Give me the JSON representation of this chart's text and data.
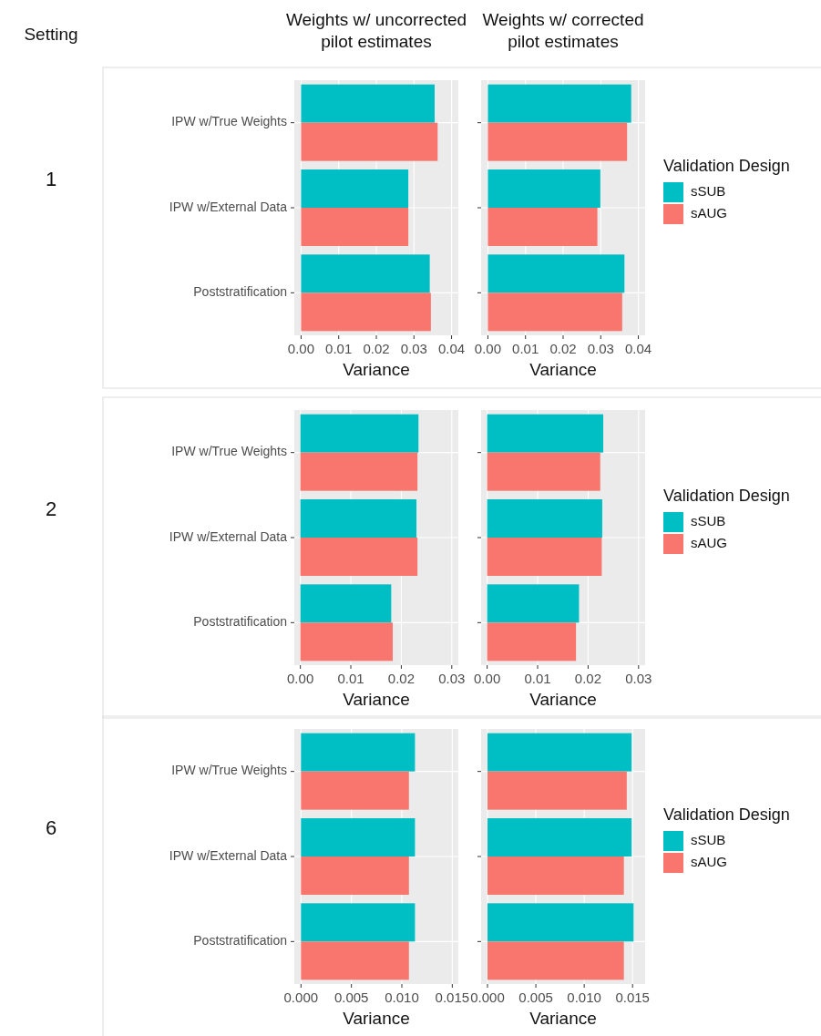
{
  "chart_data": [
    {
      "type": "bar",
      "orientation": "horizontal",
      "title": "Weights w/ uncorrected pilot estimates",
      "annotations": [
        "Setting",
        "1"
      ],
      "categories": [
        "IPW w/True Weights",
        "IPW w/External Data",
        "Poststratification"
      ],
      "series": [
        {
          "color": "#00bfc4",
          "values": [
            0.0355,
            0.0285,
            0.0342
          ]
        },
        {
          "color": "#f8766d",
          "values": [
            0.0363,
            0.0285,
            0.0345
          ]
        }
      ],
      "xlim": [
        -0.0018,
        0.0418
      ],
      "xticks": [
        {
          "value": 0,
          "label": "0.00"
        },
        {
          "value": 0.01,
          "label": "0.01"
        },
        {
          "value": 0.02,
          "label": "0.02"
        },
        {
          "value": 0.03,
          "label": "0.03"
        },
        {
          "value": 0.04,
          "label": "0.04"
        }
      ],
      "xlabel": "Variance",
      "grid": true,
      "legend": false
    },
    {
      "type": "bar",
      "orientation": "horizontal",
      "title": "Weights w/ corrected pilot estimates",
      "categories": [
        null,
        null,
        null
      ],
      "series": [
        {
          "name": "sSUB",
          "color": "#00bfc4",
          "values": [
            0.0381,
            0.0299,
            0.0363
          ]
        },
        {
          "name": "sAUG",
          "color": "#f8766d",
          "values": [
            0.037,
            0.0291,
            0.0357
          ]
        }
      ],
      "xlim": [
        -0.0018,
        0.0418
      ],
      "xticks": [
        {
          "value": 0,
          "label": "0.00"
        },
        {
          "value": 0.01,
          "label": "0.01"
        },
        {
          "value": 0.02,
          "label": "0.02"
        },
        {
          "value": 0.03,
          "label": "0.03"
        },
        {
          "value": 0.04,
          "label": "0.04"
        }
      ],
      "xlabel": "Variance",
      "grid": true,
      "legend": "right",
      "legend_title": "Validation Design",
      "tick_labels": "x"
    },
    {
      "type": "bar",
      "orientation": "horizontal",
      "annotations": [
        "2"
      ],
      "categories": [
        "IPW w/True Weights",
        "IPW w/External Data",
        "Poststratification"
      ],
      "series": [
        {
          "color": "#00bfc4",
          "values": [
            0.0234,
            0.023,
            0.018
          ]
        },
        {
          "color": "#f8766d",
          "values": [
            0.0232,
            0.0232,
            0.0183
          ]
        }
      ],
      "xlim": [
        -0.0012,
        0.0313
      ],
      "xticks": [
        {
          "value": 0,
          "label": "0.00"
        },
        {
          "value": 0.01,
          "label": "0.01"
        },
        {
          "value": 0.02,
          "label": "0.02"
        },
        {
          "value": 0.03,
          "label": "0.03"
        }
      ],
      "xlabel": "Variance",
      "grid": true,
      "legend": false
    },
    {
      "type": "bar",
      "orientation": "horizontal",
      "categories": [
        null,
        null,
        null
      ],
      "series": [
        {
          "name": "sSUB",
          "color": "#00bfc4",
          "values": [
            0.023,
            0.0228,
            0.0182
          ]
        },
        {
          "name": "sAUG",
          "color": "#f8766d",
          "values": [
            0.0224,
            0.0227,
            0.0176
          ]
        }
      ],
      "xlim": [
        -0.0012,
        0.0313
      ],
      "xticks": [
        {
          "value": 0,
          "label": "0.00"
        },
        {
          "value": 0.01,
          "label": "0.01"
        },
        {
          "value": 0.02,
          "label": "0.02"
        },
        {
          "value": 0.03,
          "label": "0.03"
        }
      ],
      "xlabel": "Variance",
      "grid": true,
      "legend": "right",
      "legend_title": "Validation Design",
      "tick_labels": "x"
    },
    {
      "type": "bar",
      "orientation": "horizontal",
      "annotations": [
        "6"
      ],
      "categories": [
        "IPW w/True Weights",
        "IPW w/External Data",
        "Poststratification"
      ],
      "series": [
        {
          "color": "#00bfc4",
          "values": [
            0.0113,
            0.0113,
            0.0113
          ]
        },
        {
          "color": "#f8766d",
          "values": [
            0.0107,
            0.0107,
            0.0107
          ]
        }
      ],
      "xlim": [
        -0.00066,
        0.0156
      ],
      "xticks": [
        {
          "value": 0,
          "label": "0.000"
        },
        {
          "value": 0.005,
          "label": "0.005"
        },
        {
          "value": 0.01,
          "label": "0.010"
        },
        {
          "value": 0.015,
          "label": "0.015"
        }
      ],
      "xlabel": "Variance",
      "grid": true,
      "legend": false
    },
    {
      "type": "bar",
      "orientation": "horizontal",
      "categories": [
        null,
        null,
        null
      ],
      "series": [
        {
          "name": "sSUB",
          "color": "#00bfc4",
          "values": [
            0.0149,
            0.0149,
            0.0151
          ]
        },
        {
          "name": "sAUG",
          "color": "#f8766d",
          "values": [
            0.0144,
            0.0141,
            0.0141
          ]
        }
      ],
      "xlim": [
        -0.00066,
        0.0163
      ],
      "xticks": [
        {
          "value": 0,
          "label": "0.000"
        },
        {
          "value": 0.005,
          "label": "0.005"
        },
        {
          "value": 0.01,
          "label": "0.010"
        },
        {
          "value": 0.015,
          "label": "0.015"
        }
      ],
      "xlabel": "Variance",
      "grid": true,
      "legend": "right",
      "legend_title": "Validation Design",
      "tick_labels": "x"
    }
  ]
}
